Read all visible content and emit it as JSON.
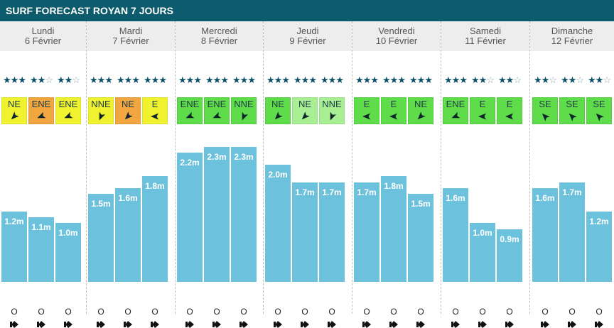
{
  "title": "SURF FORECAST ROYAN 7 JOURS",
  "colors": {
    "header": "#0c5c6e",
    "bar": "#6cc2dc",
    "star_on": "#0c4f66",
    "star_off": "#8aa6b0",
    "wind_yellow": "#f0f230",
    "wind_orange": "#f2a640",
    "wind_green": "#5fdc4a",
    "wind_lightgreen": "#a8ef93"
  },
  "days": [
    {
      "name": "Lundi",
      "date": "6 Février",
      "slots": [
        {
          "stars": 3,
          "wind": "NE",
          "wind_color": "#f0f230",
          "height": 1.2,
          "height_label": "1.2m",
          "tide": "O"
        },
        {
          "stars": 2,
          "wind": "ENE",
          "wind_color": "#f2a640",
          "height": 1.1,
          "height_label": "1.1m",
          "tide": "O"
        },
        {
          "stars": 2,
          "wind": "ENE",
          "wind_color": "#f0f230",
          "height": 1.0,
          "height_label": "1.0m",
          "tide": "O"
        }
      ]
    },
    {
      "name": "Mardi",
      "date": "7 Février",
      "slots": [
        {
          "stars": 3,
          "wind": "NNE",
          "wind_color": "#f0f230",
          "height": 1.5,
          "height_label": "1.5m",
          "tide": "O"
        },
        {
          "stars": 3,
          "wind": "NE",
          "wind_color": "#f2a640",
          "height": 1.6,
          "height_label": "1.6m",
          "tide": "O"
        },
        {
          "stars": 3,
          "wind": "E",
          "wind_color": "#f0f230",
          "height": 1.8,
          "height_label": "1.8m",
          "tide": "O"
        }
      ]
    },
    {
      "name": "Mercredi",
      "date": "8 Février",
      "slots": [
        {
          "stars": 3,
          "wind": "ENE",
          "wind_color": "#5fdc4a",
          "height": 2.2,
          "height_label": "2.2m",
          "tide": "O"
        },
        {
          "stars": 3,
          "wind": "ENE",
          "wind_color": "#5fdc4a",
          "height": 2.3,
          "height_label": "2.3m",
          "tide": "O"
        },
        {
          "stars": 3,
          "wind": "NNE",
          "wind_color": "#5fdc4a",
          "height": 2.3,
          "height_label": "2.3m",
          "tide": "O"
        }
      ]
    },
    {
      "name": "Jeudi",
      "date": "9 Février",
      "slots": [
        {
          "stars": 3,
          "wind": "NE",
          "wind_color": "#5fdc4a",
          "height": 2.0,
          "height_label": "2.0m",
          "tide": "O"
        },
        {
          "stars": 3,
          "wind": "NE",
          "wind_color": "#a8ef93",
          "height": 1.7,
          "height_label": "1.7m",
          "tide": "O"
        },
        {
          "stars": 3,
          "wind": "NNE",
          "wind_color": "#a8ef93",
          "height": 1.7,
          "height_label": "1.7m",
          "tide": "O"
        }
      ]
    },
    {
      "name": "Vendredi",
      "date": "10 Février",
      "slots": [
        {
          "stars": 3,
          "wind": "E",
          "wind_color": "#5fdc4a",
          "height": 1.7,
          "height_label": "1.7m",
          "tide": "O"
        },
        {
          "stars": 3,
          "wind": "E",
          "wind_color": "#5fdc4a",
          "height": 1.8,
          "height_label": "1.8m",
          "tide": "O"
        },
        {
          "stars": 3,
          "wind": "NE",
          "wind_color": "#5fdc4a",
          "height": 1.5,
          "height_label": "1.5m",
          "tide": "O"
        }
      ]
    },
    {
      "name": "Samedi",
      "date": "11 Février",
      "slots": [
        {
          "stars": 3,
          "wind": "ENE",
          "wind_color": "#5fdc4a",
          "height": 1.6,
          "height_label": "1.6m",
          "tide": "O"
        },
        {
          "stars": 2,
          "wind": "E",
          "wind_color": "#5fdc4a",
          "height": 1.0,
          "height_label": "1.0m",
          "tide": "O"
        },
        {
          "stars": 2,
          "wind": "E",
          "wind_color": "#5fdc4a",
          "height": 0.9,
          "height_label": "0.9m",
          "tide": "O"
        }
      ]
    },
    {
      "name": "Dimanche",
      "date": "12 Février",
      "slots": [
        {
          "stars": 2,
          "wind": "SE",
          "wind_color": "#5fdc4a",
          "height": 1.6,
          "height_label": "1.6m",
          "tide": "O"
        },
        {
          "stars": 2,
          "wind": "SE",
          "wind_color": "#5fdc4a",
          "height": 1.7,
          "height_label": "1.7m",
          "tide": "O"
        },
        {
          "stars": 2,
          "wind": "SE",
          "wind_color": "#5fdc4a",
          "height": 1.2,
          "height_label": "1.2m",
          "tide": "O"
        }
      ]
    }
  ]
}
